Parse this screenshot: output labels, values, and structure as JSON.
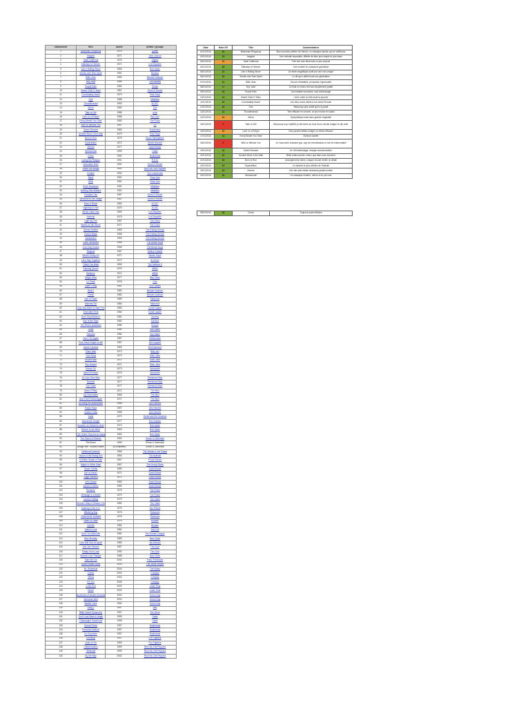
{
  "colors": {
    "green": "#7FAE3C",
    "orange": "#E8A33D",
    "red": "#E23A2E",
    "header_gray": "#D9D9D9",
    "link_blue": "#2433C0"
  },
  "left_table": {
    "headers": [
      "classement",
      "titre",
      "année",
      "artiste / groupe"
    ],
    "plain_rows": [
      91,
      92
    ],
    "rows": [
      [
        "1",
        "Bohemian Rhapsody",
        "1975",
        "Queen"
      ],
      [
        "2",
        "Imagine",
        "1971",
        "John Lennon"
      ],
      [
        "3",
        "Hotel California",
        "1976",
        "Eagles"
      ],
      [
        "4",
        "Stairway to Heaven",
        "1971",
        "Led Zeppelin"
      ],
      [
        "5",
        "Like a Rolling Stone",
        "1965",
        "Bob Dylan"
      ],
      [
        "6",
        "Smells Like Teen Spirit",
        "1991",
        "Nirvana"
      ],
      [
        "7",
        "Billie Jean",
        "1983",
        "Michael Jackson"
      ],
      [
        "8",
        "Hey Jude",
        "1968",
        "The Beatles"
      ],
      [
        "9",
        "Purple Rain",
        "1984",
        "Prince"
      ],
      [
        "10",
        "Sweet Child O' Mine",
        "1987",
        "Guns N' Roses"
      ],
      [
        "11",
        "Comfortably Numb",
        "1979",
        "Pink Floyd"
      ],
      [
        "12",
        "One",
        "1988",
        "Metallica"
      ],
      [
        "13",
        "Thunderstruck",
        "1990",
        "AC/DC"
      ],
      [
        "14",
        "Africa",
        "1982",
        "Toto"
      ],
      [
        "15",
        "Take on Me",
        "1985",
        "a-ha"
      ],
      [
        "16",
        "Livin' on a Prayer",
        "1986",
        "Bon Jovi"
      ],
      [
        "17",
        "Every Breath You Take",
        "1983",
        "The Police"
      ],
      [
        "18",
        "With or Without You",
        "1987",
        "U2"
      ],
      [
        "19",
        "Sweet Dreams",
        "1983",
        "Eurythmics"
      ],
      [
        "20",
        "Another Brick in the Wall",
        "1979",
        "Pink Floyd"
      ],
      [
        "21",
        "Born to Run",
        "1975",
        "Bruce Springsteen"
      ],
      [
        "22",
        "Superstition",
        "1972",
        "Stevie Wonder"
      ],
      [
        "23",
        "Heroes",
        "1977",
        "David Bowie"
      ],
      [
        "24",
        "Wonderwall",
        "1995",
        "Oasis"
      ],
      [
        "25",
        "Creep",
        "1992",
        "Radiohead"
      ],
      [
        "26",
        "Losing My Religion",
        "1991",
        "R.E.M."
      ],
      [
        "27",
        "November Rain",
        "1991",
        "Guns N' Roses"
      ],
      [
        "28",
        "Under the Bridge",
        "1991",
        "Red Hot Chili Peppers"
      ],
      [
        "29",
        "Zombie",
        "1994",
        "The Cranberries"
      ],
      [
        "30",
        "Black",
        "1991",
        "Pearl Jam"
      ],
      [
        "31",
        "Alive",
        "1991",
        "Pearl Jam"
      ],
      [
        "32",
        "Enter Sandman",
        "1991",
        "Metallica"
      ],
      [
        "33",
        "Nothing Else Matters",
        "1991",
        "Metallica"
      ],
      [
        "34",
        "Paradise City",
        "1987",
        "Guns N' Roses"
      ],
      [
        "35",
        "Welcome to the Jungle",
        "1987",
        "Guns N' Roses"
      ],
      [
        "36",
        "Back in Black",
        "1980",
        "AC/DC"
      ],
      [
        "37",
        "Highway to Hell",
        "1979",
        "AC/DC"
      ],
      [
        "38",
        "Whole Lotta Love",
        "1969",
        "Led Zeppelin"
      ],
      [
        "39",
        "Kashmir",
        "1975",
        "Led Zeppelin"
      ],
      [
        "40",
        "Light My Fire",
        "1967",
        "The Doors"
      ],
      [
        "41",
        "Riders on the Storm",
        "1971",
        "The Doors"
      ],
      [
        "42",
        "Gimme Shelter",
        "1969",
        "The Rolling Stones"
      ],
      [
        "43",
        "Paint It Black",
        "1966",
        "The Rolling Stones"
      ],
      [
        "44",
        "Satisfaction",
        "1965",
        "The Rolling Stones"
      ],
      [
        "45",
        "Good Vibrations",
        "1966",
        "The Beach Boys"
      ],
      [
        "46",
        "God Only Knows",
        "1966",
        "The Beach Boys"
      ],
      [
        "47",
        "Respect",
        "1967",
        "Aretha Franklin"
      ],
      [
        "48",
        "What's Going On",
        "1971",
        "Marvin Gaye"
      ],
      [
        "49",
        "Let's Stay Together",
        "1972",
        "Al Green"
      ],
      [
        "50",
        "I Want You Back",
        "1969",
        "The Jackson 5"
      ],
      [
        "51",
        "Dancing Queen",
        "1976",
        "ABBA"
      ],
      [
        "52",
        "Waterloo",
        "1974",
        "ABBA"
      ],
      [
        "53",
        "Stayin' Alive",
        "1977",
        "Bee Gees"
      ],
      [
        "54",
        "Le Freak",
        "1978",
        "Chic"
      ],
      [
        "55",
        "Super Freak",
        "1981",
        "Rick James"
      ],
      [
        "56",
        "Beat It",
        "1982",
        "Michael Jackson"
      ],
      [
        "57",
        "Thriller",
        "1982",
        "Michael Jackson"
      ],
      [
        "58",
        "Like a Prayer",
        "1989",
        "Madonna"
      ],
      [
        "59",
        "Material Girl",
        "1984",
        "Madonna"
      ],
      [
        "60",
        "Girls Just Want to Have Fun",
        "1983",
        "Cyndi Lauper"
      ],
      [
        "61",
        "Time After Time",
        "1984",
        "Cyndi Lauper"
      ],
      [
        "62",
        "Don't Stop Believin'",
        "1981",
        "Journey"
      ],
      [
        "63",
        "Eye of the Tiger",
        "1982",
        "Survivor"
      ],
      [
        "64",
        "The Final Countdown",
        "1986",
        "Europe"
      ],
      [
        "65",
        "Jump",
        "1984",
        "Van Halen"
      ],
      [
        "66",
        "Panama",
        "1984",
        "Van Halen"
      ],
      [
        "67",
        "Here I Go Again",
        "1987",
        "Whitesnake"
      ],
      [
        "68",
        "Pour Some Sugar on Me",
        "1987",
        "Def Leppard"
      ],
      [
        "69",
        "Sweet Caroline",
        "1969",
        "Neil Diamond"
      ],
      [
        "70",
        "Piano Man",
        "1973",
        "Billy Joel"
      ],
      [
        "71",
        "Your Song",
        "1970",
        "Elton John"
      ],
      [
        "72",
        "Rocket Man",
        "1972",
        "Elton John"
      ],
      [
        "73",
        "Tiny Dancer",
        "1971",
        "Elton John"
      ],
      [
        "74",
        "Dream On",
        "1973",
        "Aerosmith"
      ],
      [
        "75",
        "Sweet Emotion",
        "1975",
        "Aerosmith"
      ],
      [
        "76",
        "Go Your Own Way",
        "1977",
        "Fleetwood Mac"
      ],
      [
        "77",
        "Dreams",
        "1977",
        "Fleetwood Mac"
      ],
      [
        "78",
        "The Chain",
        "1977",
        "Fleetwood Mac"
      ],
      [
        "79",
        "Baba O'Riley",
        "1971",
        "The Who"
      ],
      [
        "80",
        "My Generation",
        "1965",
        "The Who"
      ],
      [
        "81",
        "Won't Get Fooled Again",
        "1971",
        "The Who"
      ],
      [
        "82",
        "All Along the Watchtower",
        "1968",
        "Jimi Hendrix"
      ],
      [
        "83",
        "Purple Haze",
        "1967",
        "Jimi Hendrix"
      ],
      [
        "84",
        "Voodoo Child",
        "1968",
        "Jimi Hendrix"
      ],
      [
        "85",
        "Layla",
        "1970",
        "Derek and the Dominos"
      ],
      [
        "86",
        "Wonderful Tonight",
        "1977",
        "Eric Clapton"
      ],
      [
        "87",
        "Knockin' on Heaven's Door",
        "1973",
        "Bob Dylan"
      ],
      [
        "88",
        "Blowin' in the Wind",
        "1963",
        "Bob Dylan"
      ],
      [
        "89",
        "The Times They Are A-Changin'",
        "1964",
        "Bob Dylan"
      ],
      [
        "90",
        "The Sound of Silence",
        "1964",
        "Simon & Garfunkel"
      ],
      [
        "91",
        "The Boxer",
        "1969",
        "Simon & Garfunkel"
      ],
      [
        "92",
        "Bridge over Troubled Water",
        "(à compléter)",
        "Simon & Garfunkel"
      ],
      [
        "93",
        "California Dreamin'",
        "1965",
        "The Mamas & the Papas"
      ],
      [
        "94",
        "House of the Rising Sun",
        "1964",
        "The Animals"
      ],
      [
        "95",
        "A Whiter Shade of Pale",
        "1967",
        "Procol Harum"
      ],
      [
        "96",
        "Nights in White Satin",
        "1967",
        "The Moody Blues"
      ],
      [
        "97",
        "Space Oddity",
        "1969",
        "David Bowie"
      ],
      [
        "98",
        "Life on Mars?",
        "1971",
        "David Bowie"
      ],
      [
        "99",
        "Ziggy Stardust",
        "1972",
        "David Bowie"
      ],
      [
        "100",
        "Let's Dance",
        "1983",
        "David Bowie"
      ],
      [
        "101",
        "Ashes to Ashes",
        "1980",
        "David Bowie"
      ],
      [
        "102",
        "Roxanne",
        "1978",
        "The Police"
      ],
      [
        "103",
        "Message in a Bottle",
        "1979",
        "The Police"
      ],
      [
        "104",
        "London Calling",
        "1979",
        "The Clash"
      ],
      [
        "105",
        "Should I Stay or Should I Go",
        "1982",
        "The Clash"
      ],
      [
        "106",
        "Anarchy in the U.K.",
        "1976",
        "Sex Pistols"
      ],
      [
        "107",
        "Blitzkrieg Bop",
        "1976",
        "Ramones"
      ],
      [
        "108",
        "I Wanna Be Sedated",
        "1978",
        "Ramones"
      ],
      [
        "109",
        "Heart of Glass",
        "1978",
        "Blondie"
      ],
      [
        "110",
        "Call Me",
        "1980",
        "Blondie"
      ],
      [
        "111",
        "Tainted Love",
        "1981",
        "Soft Cell"
      ],
      [
        "112",
        "Don't You Want Me",
        "1981",
        "The Human League"
      ],
      [
        "113",
        "Blue Monday",
        "1983",
        "New Order"
      ],
      [
        "114",
        "Love Will Tear Us Apart",
        "1980",
        "Joy Division"
      ],
      [
        "115",
        "Just Like Heaven",
        "1987",
        "The Cure"
      ],
      [
        "116",
        "Friday I'm in Love",
        "1992",
        "The Cure"
      ],
      [
        "117",
        "Bizarre Love Triangle",
        "1986",
        "New Order"
      ],
      [
        "118",
        "Take Me Out",
        "2004",
        "Franz Ferdinand"
      ],
      [
        "119",
        "Seven Nation Army",
        "2003",
        "The White Stripes"
      ],
      [
        "120",
        "Mr. Brightside",
        "2004",
        "The Killers"
      ],
      [
        "121",
        "Clocks",
        "2002",
        "Coldplay"
      ],
      [
        "122",
        "Yellow",
        "2000",
        "Coldplay"
      ],
      [
        "123",
        "Fix You",
        "2005",
        "Coldplay"
      ],
      [
        "124",
        "In the End",
        "2000",
        "Linkin Park"
      ],
      [
        "125",
        "Numb",
        "2003",
        "Linkin Park"
      ],
      [
        "126",
        "Boulevard of Broken Dreams",
        "2004",
        "Green Day"
      ],
      [
        "127",
        "American Idiot",
        "2004",
        "Green Day"
      ],
      [
        "128",
        "Basket Case",
        "1994",
        "Green Day"
      ],
      [
        "129",
        "Song 2",
        "1997",
        "Blur"
      ],
      [
        "130",
        "Bitter Sweet Symphony",
        "1997",
        "The Verve"
      ],
      [
        "131",
        "Don't Look Back in Anger",
        "1995",
        "Oasis"
      ],
      [
        "132",
        "Champagne Supernova",
        "1995",
        "Oasis"
      ],
      [
        "133",
        "Karma Police",
        "1997",
        "Radiohead"
      ],
      [
        "134",
        "Paranoid Android",
        "1997",
        "Radiohead"
      ],
      [
        "135",
        "No Surprises",
        "1997",
        "Radiohead"
      ],
      [
        "136",
        "Everlong",
        "1997",
        "Foo Fighters"
      ],
      [
        "137",
        "Learn to Fly",
        "1999",
        "Foo Fighters"
      ],
      [
        "138",
        "Californication",
        "1999",
        "Red Hot Chili Peppers"
      ],
      [
        "139",
        "Otherside",
        "1999",
        "Red Hot Chili Peppers"
      ],
      [
        "140",
        "By the Way",
        "2002",
        "Red Hot Chili Peppers"
      ]
    ]
  },
  "right_table": {
    "headers": [
      "Date",
      "Note /20",
      "Titre",
      "Commentaires"
    ],
    "rows": [
      {
        "date": "01/01/2010",
        "note": "14",
        "color": "green",
        "title": "Bohemian Rhapsody",
        "comment": "Mon morceau préféré de l'album, un classique absolu qui ne vieillit pas"
      },
      {
        "date": "02/01/2010",
        "note": "15",
        "color": "green",
        "title": "Imagine",
        "comment": "Une mélodie imparable, difficile de faire plus simple et plus beau"
      },
      {
        "date": "03/01/2010",
        "note": "11",
        "color": "orange",
        "title": "Hotel California",
        "comment": "Très bon solo final mais un peu surjoué"
      },
      {
        "date": "04/01/2010",
        "note": "16",
        "color": "green",
        "title": "Stairway to Heaven",
        "comment": "Une montée en puissance grandiose"
      },
      {
        "date": "05/01/2010",
        "note": "13",
        "color": "green",
        "title": "Like a Rolling Stone",
        "comment": "Un texte magnifique porté par une voix unique"
      },
      {
        "date": "06/01/2010",
        "note": "15",
        "color": "green",
        "title": "Smells Like Teen Spirit",
        "comment": "Le riff qui a défini toute une génération"
      },
      {
        "date": "07/01/2010",
        "note": "14",
        "color": "green",
        "title": "Billie Jean",
        "comment": "Groove irrésistible, production impeccable"
      },
      {
        "date": "08/01/2010",
        "note": "17",
        "color": "green",
        "title": "Hey Jude",
        "comment": "Le final en chœur est tout simplement parfait"
      },
      {
        "date": "09/01/2010",
        "note": "15",
        "color": "green",
        "title": "Purple Rain",
        "comment": "Une ballade touchante, solo d'anthologie"
      },
      {
        "date": "10/01/2010",
        "note": "13",
        "color": "green",
        "title": "Sweet Child O' Mine",
        "comment": "L'intro reste en tête toute la journée"
      },
      {
        "date": "11/01/2010",
        "note": "14",
        "color": "green",
        "title": "Comfortably Numb",
        "comment": "Les deux solos valent à eux seuls l'écoute"
      },
      {
        "date": "12/01/2010",
        "note": "16",
        "color": "green",
        "title": "One",
        "comment": "Beaucoup plus subtil qu'il n'y paraît"
      },
      {
        "date": "13/01/2010",
        "note": "12",
        "color": "green",
        "title": "Thunderstruck",
        "comment": "Très efficace en concert, un peu moins en studio"
      },
      {
        "date": "14/01/2010",
        "note": "10",
        "color": "orange",
        "title": "Africa",
        "comment": "Sympathique mais sans grande originalité"
      },
      {
        "date": "15/01/2010",
        "note": "4",
        "color": "red",
        "tall": true,
        "title": "Take on Me",
        "comment": "Beaucoup trop répétitif, je décroche au bout d'une minute malgré le clip culte"
      },
      {
        "date": "16/01/2010",
        "note": "10",
        "color": "orange",
        "title": "Livin' on a Prayer",
        "comment": "Des paroles faibles malgré un refrain efficace"
      },
      {
        "date": "17/01/2010",
        "note": "13",
        "color": "green",
        "title": "Every Breath You Take",
        "comment": "Écriture ciselée"
      },
      {
        "date": "18/01/2010",
        "note": "5",
        "color": "red",
        "tall": true,
        "title": "With or Without You",
        "comment": "Je n'accroche vraiment pas, trop de réverbération et une fin interminable"
      },
      {
        "date": "19/01/2010",
        "note": "14",
        "color": "green",
        "title": "Sweet Dreams",
        "comment": "Un riff d'anthologie, énergie communicative"
      },
      {
        "date": "20/01/2010",
        "note": "15",
        "color": "green",
        "title": "Another Brick in the Wall",
        "comment": "Belle redécouverte, mieux que dans mon souvenir"
      },
      {
        "date": "21/01/2010",
        "note": "16",
        "color": "green",
        "title": "Born to Run",
        "comment": "Arrangements riches, chaque écoute révèle un détail"
      },
      {
        "date": "22/01/2010",
        "note": "13",
        "color": "green",
        "title": "Superstition",
        "comment": "Le clavinet le plus célèbre de l'histoire"
      },
      {
        "date": "23/01/2010",
        "note": "14",
        "color": "green",
        "title": "Heroes",
        "comment": "Une des plus belles chansons jamais écrites"
      },
      {
        "date": "24/01/2010",
        "note": "16",
        "color": "green",
        "title": "Wonderwall",
        "comment": "Un classique évident, même si un peu usé"
      }
    ]
  },
  "extra_row": {
    "date": "05/02/2010",
    "note": "16",
    "color": "green",
    "title": "Creep",
    "comment": "Toujours aussi efficace"
  }
}
